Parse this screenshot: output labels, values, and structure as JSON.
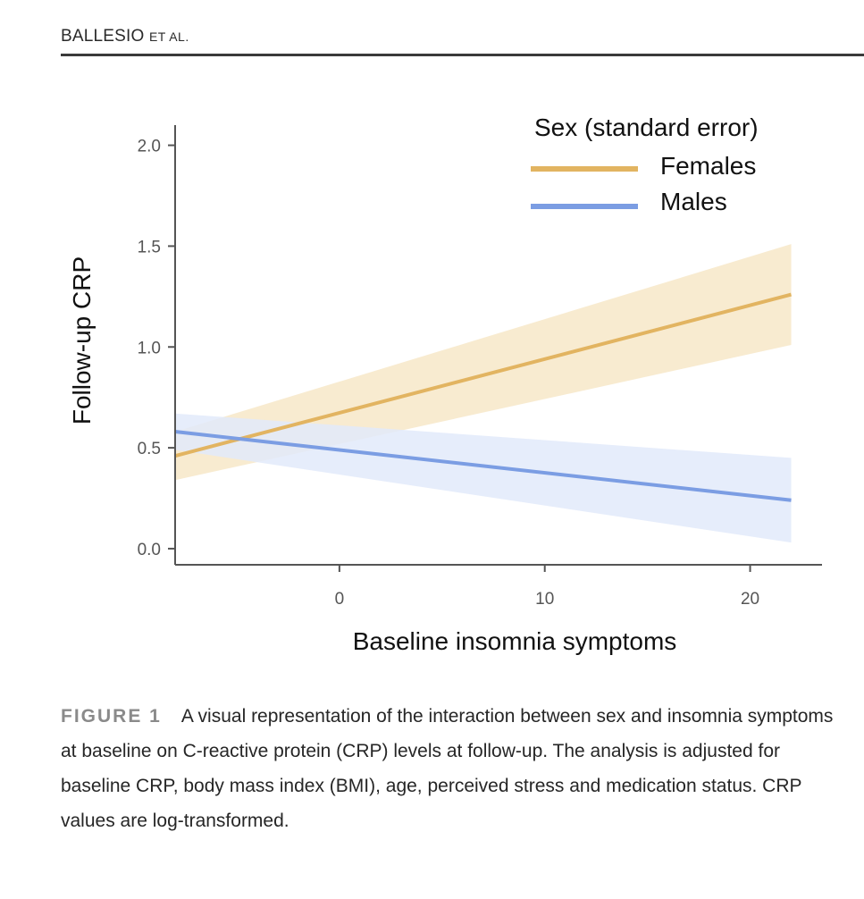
{
  "header": {
    "author": "BALLESIO",
    "etal": "ET AL."
  },
  "figure": {
    "label": "FIGURE 1",
    "caption": "A visual representation of the interaction between sex and insomnia symptoms at baseline on C-reactive protein (CRP) levels at follow-up. The analysis is adjusted for baseline CRP, body mass index (BMI), age, perceived stress and medication status. CRP values are log-transformed."
  },
  "colors": {
    "females": "#E2B461",
    "males": "#7B9DE3",
    "females_band": "#F7E7C8",
    "males_band": "#E2EAFA",
    "axis": "#555555",
    "tick_text": "#555555"
  },
  "chart_data": {
    "type": "line",
    "title": "",
    "xlabel": "Baseline insomnia symptoms",
    "ylabel": "Follow-up CRP",
    "xlim": [
      -8,
      23.5
    ],
    "ylim": [
      -0.08,
      2.1
    ],
    "xticks": [
      0,
      10,
      20
    ],
    "yticks": [
      0.0,
      0.5,
      1.0,
      1.5,
      2.0
    ],
    "xtick_labels": [
      "0",
      "10",
      "20"
    ],
    "ytick_labels": [
      "0.0",
      "0.5",
      "1.0",
      "1.5",
      "2.0"
    ],
    "legend": {
      "title": "Sex (standard error)",
      "position": "top-right",
      "entries": [
        "Females",
        "Males"
      ]
    },
    "series": [
      {
        "name": "Females",
        "x": [
          -8,
          22
        ],
        "y": [
          0.46,
          1.26
        ],
        "se_lower": [
          0.34,
          1.01
        ],
        "se_upper": [
          0.58,
          1.51
        ]
      },
      {
        "name": "Males",
        "x": [
          -8,
          22
        ],
        "y": [
          0.58,
          0.24
        ],
        "se_lower": [
          0.49,
          0.03
        ],
        "se_upper": [
          0.67,
          0.45
        ]
      }
    ]
  }
}
